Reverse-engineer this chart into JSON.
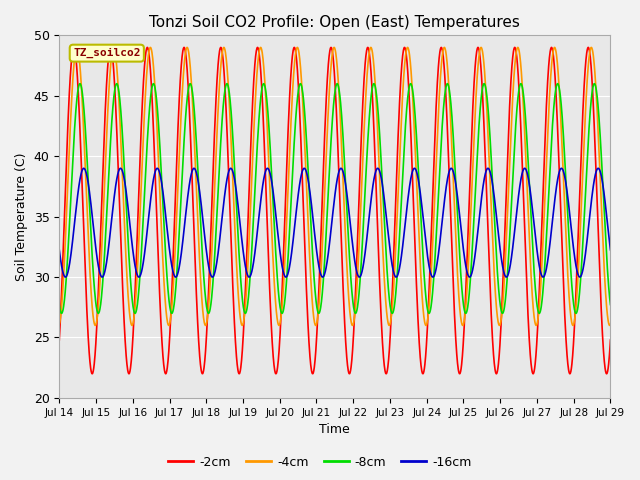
{
  "title": "Tonzi Soil CO2 Profile: Open (East) Temperatures",
  "xlabel": "Time",
  "ylabel": "Soil Temperature (C)",
  "ylim": [
    20,
    50
  ],
  "start_day": 14,
  "end_day": 29,
  "bg_color": "#e8e8e8",
  "fig_color": "#f2f2f2",
  "legend_label": "TZ_soilco2",
  "series": [
    {
      "label": "-2cm",
      "color": "#ff0000",
      "amplitude": 13.5,
      "mean": 35.5,
      "period_hours": 24,
      "phase_hours": 3.5
    },
    {
      "label": "-4cm",
      "color": "#ff9900",
      "amplitude": 11.5,
      "mean": 37.5,
      "period_hours": 24,
      "phase_hours": 5.5
    },
    {
      "label": "-8cm",
      "color": "#00dd00",
      "amplitude": 9.5,
      "mean": 36.5,
      "period_hours": 24,
      "phase_hours": 7.5
    },
    {
      "label": "-16cm",
      "color": "#0000cc",
      "amplitude": 4.5,
      "mean": 34.5,
      "period_hours": 24,
      "phase_hours": 10.0
    }
  ],
  "xtick_days": [
    14,
    15,
    16,
    17,
    18,
    19,
    20,
    21,
    22,
    23,
    24,
    25,
    26,
    27,
    28,
    29
  ],
  "xtick_labels": [
    "Jul 14",
    "Jul 15",
    "Jul 16",
    "Jul 17",
    "Jul 18",
    "Jul 19",
    "Jul 20",
    "Jul 21",
    "Jul 22",
    "Jul 23",
    "Jul 24",
    "Jul 25",
    "Jul 26",
    "Jul 27",
    "Jul 28",
    "Jul 29"
  ],
  "ytick_vals": [
    20,
    25,
    30,
    35,
    40,
    45,
    50
  ],
  "grid_color": "#ffffff",
  "line_width": 1.2
}
